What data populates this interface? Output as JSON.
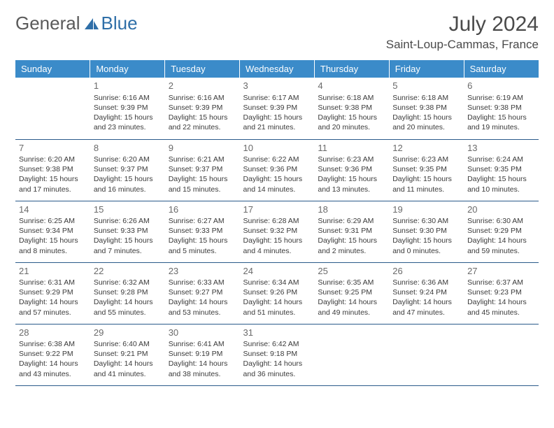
{
  "brand": {
    "part1": "General",
    "part2": "Blue"
  },
  "title": "July 2024",
  "location": "Saint-Loup-Cammas, France",
  "dayHeaders": [
    "Sunday",
    "Monday",
    "Tuesday",
    "Wednesday",
    "Thursday",
    "Friday",
    "Saturday"
  ],
  "colors": {
    "headerBg": "#3b8bc9",
    "headerText": "#ffffff",
    "brandBlue": "#2f6fa8",
    "cellBorder": "#2a5a8a"
  },
  "weeks": [
    [
      null,
      {
        "n": "1",
        "sr": "Sunrise: 6:16 AM",
        "ss": "Sunset: 9:39 PM",
        "d1": "Daylight: 15 hours",
        "d2": "and 23 minutes."
      },
      {
        "n": "2",
        "sr": "Sunrise: 6:16 AM",
        "ss": "Sunset: 9:39 PM",
        "d1": "Daylight: 15 hours",
        "d2": "and 22 minutes."
      },
      {
        "n": "3",
        "sr": "Sunrise: 6:17 AM",
        "ss": "Sunset: 9:39 PM",
        "d1": "Daylight: 15 hours",
        "d2": "and 21 minutes."
      },
      {
        "n": "4",
        "sr": "Sunrise: 6:18 AM",
        "ss": "Sunset: 9:38 PM",
        "d1": "Daylight: 15 hours",
        "d2": "and 20 minutes."
      },
      {
        "n": "5",
        "sr": "Sunrise: 6:18 AM",
        "ss": "Sunset: 9:38 PM",
        "d1": "Daylight: 15 hours",
        "d2": "and 20 minutes."
      },
      {
        "n": "6",
        "sr": "Sunrise: 6:19 AM",
        "ss": "Sunset: 9:38 PM",
        "d1": "Daylight: 15 hours",
        "d2": "and 19 minutes."
      }
    ],
    [
      {
        "n": "7",
        "sr": "Sunrise: 6:20 AM",
        "ss": "Sunset: 9:38 PM",
        "d1": "Daylight: 15 hours",
        "d2": "and 17 minutes."
      },
      {
        "n": "8",
        "sr": "Sunrise: 6:20 AM",
        "ss": "Sunset: 9:37 PM",
        "d1": "Daylight: 15 hours",
        "d2": "and 16 minutes."
      },
      {
        "n": "9",
        "sr": "Sunrise: 6:21 AM",
        "ss": "Sunset: 9:37 PM",
        "d1": "Daylight: 15 hours",
        "d2": "and 15 minutes."
      },
      {
        "n": "10",
        "sr": "Sunrise: 6:22 AM",
        "ss": "Sunset: 9:36 PM",
        "d1": "Daylight: 15 hours",
        "d2": "and 14 minutes."
      },
      {
        "n": "11",
        "sr": "Sunrise: 6:23 AM",
        "ss": "Sunset: 9:36 PM",
        "d1": "Daylight: 15 hours",
        "d2": "and 13 minutes."
      },
      {
        "n": "12",
        "sr": "Sunrise: 6:23 AM",
        "ss": "Sunset: 9:35 PM",
        "d1": "Daylight: 15 hours",
        "d2": "and 11 minutes."
      },
      {
        "n": "13",
        "sr": "Sunrise: 6:24 AM",
        "ss": "Sunset: 9:35 PM",
        "d1": "Daylight: 15 hours",
        "d2": "and 10 minutes."
      }
    ],
    [
      {
        "n": "14",
        "sr": "Sunrise: 6:25 AM",
        "ss": "Sunset: 9:34 PM",
        "d1": "Daylight: 15 hours",
        "d2": "and 8 minutes."
      },
      {
        "n": "15",
        "sr": "Sunrise: 6:26 AM",
        "ss": "Sunset: 9:33 PM",
        "d1": "Daylight: 15 hours",
        "d2": "and 7 minutes."
      },
      {
        "n": "16",
        "sr": "Sunrise: 6:27 AM",
        "ss": "Sunset: 9:33 PM",
        "d1": "Daylight: 15 hours",
        "d2": "and 5 minutes."
      },
      {
        "n": "17",
        "sr": "Sunrise: 6:28 AM",
        "ss": "Sunset: 9:32 PM",
        "d1": "Daylight: 15 hours",
        "d2": "and 4 minutes."
      },
      {
        "n": "18",
        "sr": "Sunrise: 6:29 AM",
        "ss": "Sunset: 9:31 PM",
        "d1": "Daylight: 15 hours",
        "d2": "and 2 minutes."
      },
      {
        "n": "19",
        "sr": "Sunrise: 6:30 AM",
        "ss": "Sunset: 9:30 PM",
        "d1": "Daylight: 15 hours",
        "d2": "and 0 minutes."
      },
      {
        "n": "20",
        "sr": "Sunrise: 6:30 AM",
        "ss": "Sunset: 9:29 PM",
        "d1": "Daylight: 14 hours",
        "d2": "and 59 minutes."
      }
    ],
    [
      {
        "n": "21",
        "sr": "Sunrise: 6:31 AM",
        "ss": "Sunset: 9:29 PM",
        "d1": "Daylight: 14 hours",
        "d2": "and 57 minutes."
      },
      {
        "n": "22",
        "sr": "Sunrise: 6:32 AM",
        "ss": "Sunset: 9:28 PM",
        "d1": "Daylight: 14 hours",
        "d2": "and 55 minutes."
      },
      {
        "n": "23",
        "sr": "Sunrise: 6:33 AM",
        "ss": "Sunset: 9:27 PM",
        "d1": "Daylight: 14 hours",
        "d2": "and 53 minutes."
      },
      {
        "n": "24",
        "sr": "Sunrise: 6:34 AM",
        "ss": "Sunset: 9:26 PM",
        "d1": "Daylight: 14 hours",
        "d2": "and 51 minutes."
      },
      {
        "n": "25",
        "sr": "Sunrise: 6:35 AM",
        "ss": "Sunset: 9:25 PM",
        "d1": "Daylight: 14 hours",
        "d2": "and 49 minutes."
      },
      {
        "n": "26",
        "sr": "Sunrise: 6:36 AM",
        "ss": "Sunset: 9:24 PM",
        "d1": "Daylight: 14 hours",
        "d2": "and 47 minutes."
      },
      {
        "n": "27",
        "sr": "Sunrise: 6:37 AM",
        "ss": "Sunset: 9:23 PM",
        "d1": "Daylight: 14 hours",
        "d2": "and 45 minutes."
      }
    ],
    [
      {
        "n": "28",
        "sr": "Sunrise: 6:38 AM",
        "ss": "Sunset: 9:22 PM",
        "d1": "Daylight: 14 hours",
        "d2": "and 43 minutes."
      },
      {
        "n": "29",
        "sr": "Sunrise: 6:40 AM",
        "ss": "Sunset: 9:21 PM",
        "d1": "Daylight: 14 hours",
        "d2": "and 41 minutes."
      },
      {
        "n": "30",
        "sr": "Sunrise: 6:41 AM",
        "ss": "Sunset: 9:19 PM",
        "d1": "Daylight: 14 hours",
        "d2": "and 38 minutes."
      },
      {
        "n": "31",
        "sr": "Sunrise: 6:42 AM",
        "ss": "Sunset: 9:18 PM",
        "d1": "Daylight: 14 hours",
        "d2": "and 36 minutes."
      },
      null,
      null,
      null
    ]
  ]
}
